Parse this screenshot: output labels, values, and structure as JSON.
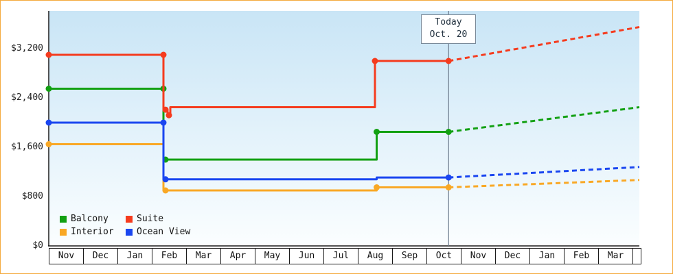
{
  "chart_data": {
    "type": "line",
    "description": "Cruise cabin price history by category; solid step lines are past prices, dotted lines are forecast after today",
    "y_axis": {
      "ticks": [
        {
          "label": "$0",
          "value": 0
        },
        {
          "label": "$800",
          "value": 800
        },
        {
          "label": "$1,600",
          "value": 1600
        },
        {
          "label": "$2,400",
          "value": 2400
        },
        {
          "label": "$3,200",
          "value": 3200
        }
      ]
    },
    "x_axis": {
      "months": [
        "Nov",
        "Dec",
        "Jan",
        "Feb",
        "Mar",
        "Apr",
        "May",
        "Jun",
        "Jul",
        "Aug",
        "Sep",
        "Oct",
        "Nov",
        "Dec",
        "Jan",
        "Feb",
        "Mar"
      ]
    },
    "today": {
      "line1": "Today",
      "line2": "Oct. 20",
      "month_unit": 11.645
    },
    "x_end_unit": 17.2,
    "series": [
      {
        "name": "Balcony",
        "color": "#12a012",
        "history": [
          [
            0,
            2550
          ],
          [
            3.34,
            2550
          ],
          [
            3.34,
            1400
          ],
          [
            9.55,
            1400
          ],
          [
            9.55,
            1850
          ],
          [
            11.645,
            1850
          ]
        ],
        "forecast": [
          [
            11.645,
            1850
          ],
          [
            17.2,
            2250
          ]
        ],
        "dots": [
          [
            0,
            2550
          ],
          [
            3.34,
            2550
          ],
          [
            3.4,
            1400
          ],
          [
            9.55,
            1850
          ],
          [
            11.645,
            1850
          ]
        ]
      },
      {
        "name": "Suite",
        "color": "#f53b1e",
        "history": [
          [
            0,
            3100
          ],
          [
            3.34,
            3100
          ],
          [
            3.34,
            2210
          ],
          [
            3.46,
            2210
          ],
          [
            3.46,
            2120
          ],
          [
            3.54,
            2120
          ],
          [
            3.54,
            2250
          ],
          [
            9.5,
            2250
          ],
          [
            9.5,
            3000
          ],
          [
            11.645,
            3000
          ]
        ],
        "forecast": [
          [
            11.645,
            3000
          ],
          [
            17.2,
            3550
          ]
        ],
        "dots": [
          [
            0,
            3100
          ],
          [
            3.34,
            3100
          ],
          [
            3.4,
            2210
          ],
          [
            3.5,
            2120
          ],
          [
            9.5,
            3000
          ],
          [
            11.645,
            3000
          ]
        ]
      },
      {
        "name": "Interior",
        "color": "#f9a825",
        "history": [
          [
            0,
            1650
          ],
          [
            3.34,
            1650
          ],
          [
            3.34,
            900
          ],
          [
            9.55,
            900
          ],
          [
            9.55,
            950
          ],
          [
            11.645,
            950
          ]
        ],
        "forecast": [
          [
            11.645,
            950
          ],
          [
            17.2,
            1070
          ]
        ],
        "dots": [
          [
            0,
            1650
          ],
          [
            3.4,
            900
          ],
          [
            9.55,
            950
          ],
          [
            11.645,
            950
          ]
        ]
      },
      {
        "name": "Ocean View",
        "color": "#1a46f0",
        "history": [
          [
            0,
            2000
          ],
          [
            3.34,
            2000
          ],
          [
            3.34,
            1080
          ],
          [
            9.55,
            1080
          ],
          [
            9.55,
            1110
          ],
          [
            11.645,
            1110
          ]
        ],
        "forecast": [
          [
            11.645,
            1110
          ],
          [
            17.2,
            1280
          ]
        ],
        "dots": [
          [
            0,
            2000
          ],
          [
            3.34,
            2000
          ],
          [
            3.4,
            1080
          ],
          [
            11.645,
            1110
          ]
        ]
      }
    ],
    "legend": [
      "Balcony",
      "Suite",
      "Interior",
      "Ocean View"
    ]
  },
  "colors": {
    "plot_top": "#c9e5f6",
    "plot_bottom": "#fbfeff",
    "axis": "#1a1a1a",
    "today_line": "#6b7a8c",
    "page_border": "#f4a93c"
  }
}
